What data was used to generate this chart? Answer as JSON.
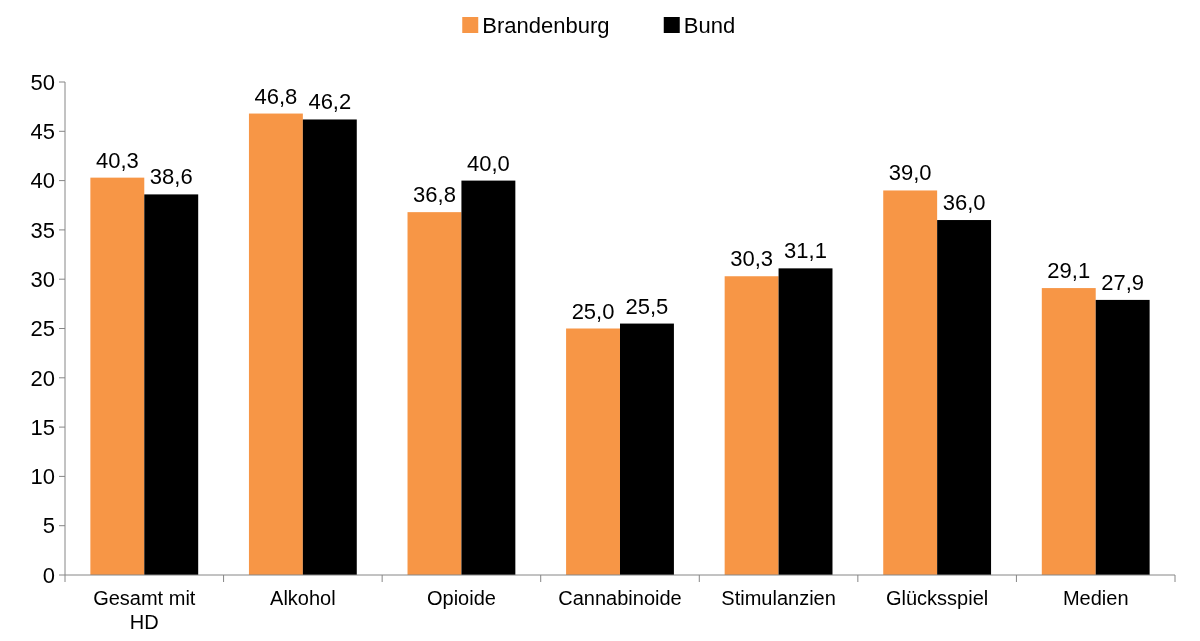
{
  "chart_data": {
    "type": "bar",
    "categories": [
      "Gesamt mit HD",
      "Alkohol",
      "Opioide",
      "Cannabinoide",
      "Stimulanzien",
      "Glücksspiel",
      "Medien"
    ],
    "series": [
      {
        "name": "Brandenburg",
        "color": "#f79646",
        "values": [
          40.3,
          46.8,
          36.8,
          25.0,
          30.3,
          39.0,
          29.1
        ],
        "value_labels": [
          "40,3",
          "46,8",
          "36,8",
          "25,0",
          "30,3",
          "39,0",
          "29,1"
        ]
      },
      {
        "name": "Bund",
        "color": "#000000",
        "values": [
          38.6,
          46.2,
          40.0,
          25.5,
          31.1,
          36.0,
          27.9
        ],
        "value_labels": [
          "38,6",
          "46,2",
          "40,0",
          "25,5",
          "31,1",
          "36,0",
          "27,9"
        ]
      }
    ],
    "ylim": [
      0,
      50
    ],
    "yticks": [
      0,
      5,
      10,
      15,
      20,
      25,
      30,
      35,
      40,
      45,
      50
    ],
    "grid": false,
    "legend": "top"
  }
}
